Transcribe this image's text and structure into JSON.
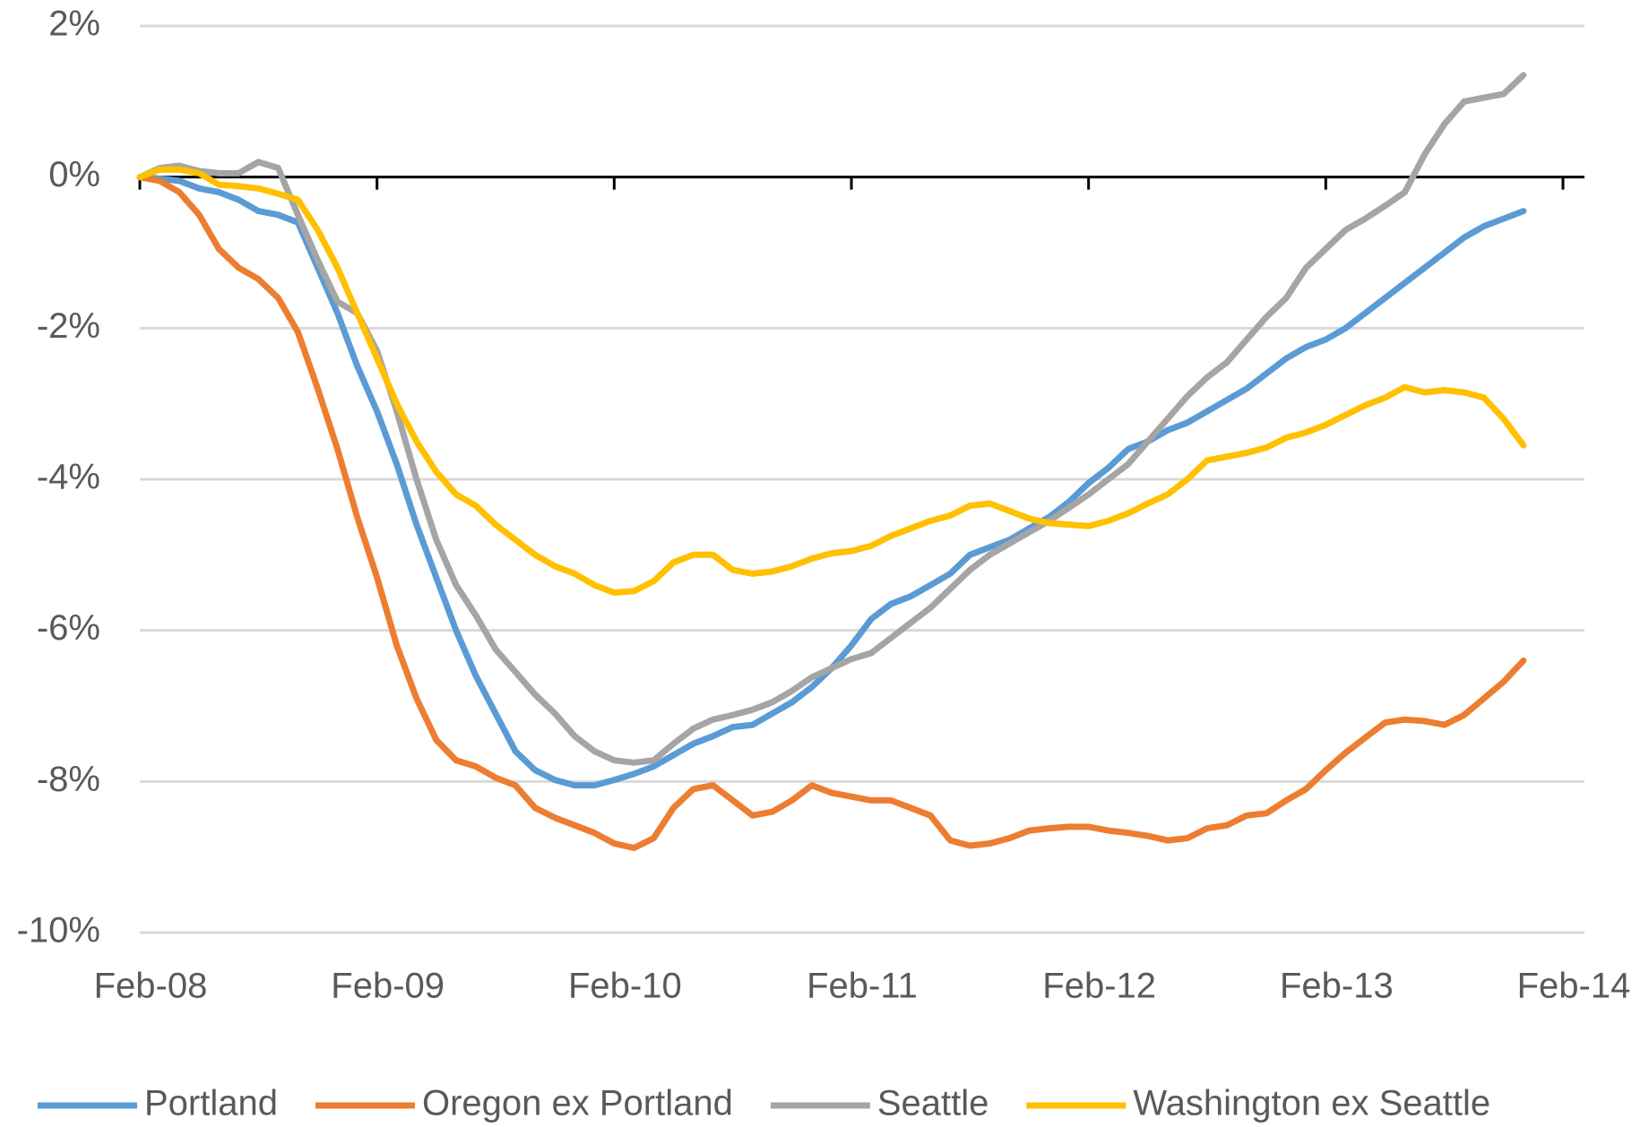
{
  "chart_data": {
    "type": "line",
    "categories": [
      "Feb-08",
      null,
      null,
      null,
      null,
      null,
      null,
      null,
      null,
      null,
      null,
      null,
      "Feb-09",
      null,
      null,
      null,
      null,
      null,
      null,
      null,
      null,
      null,
      null,
      null,
      "Feb-10",
      null,
      null,
      null,
      null,
      null,
      null,
      null,
      null,
      null,
      null,
      null,
      "Feb-11",
      null,
      null,
      null,
      null,
      null,
      null,
      null,
      null,
      null,
      null,
      null,
      "Feb-12",
      null,
      null,
      null,
      null,
      null,
      null,
      null,
      null,
      null,
      null,
      null,
      "Feb-13",
      null,
      null,
      null,
      null,
      null,
      null,
      null,
      null,
      null,
      null,
      null,
      "Feb-14"
    ],
    "series": [
      {
        "name": "Portland",
        "color": "#5b9bd5",
        "values": [
          0,
          -0.02,
          -0.05,
          -0.15,
          -0.2,
          -0.3,
          -0.45,
          -0.5,
          -0.6,
          -1.2,
          -1.8,
          -2.5,
          -3.1,
          -3.8,
          -4.6,
          -5.3,
          -6.0,
          -6.6,
          -7.1,
          -7.6,
          -7.85,
          -7.98,
          -8.05,
          -8.05,
          -7.98,
          -7.9,
          -7.8,
          -7.65,
          -7.5,
          -7.4,
          -7.28,
          -7.25,
          -7.1,
          -6.95,
          -6.75,
          -6.5,
          -6.2,
          -5.85,
          -5.65,
          -5.55,
          -5.4,
          -5.25,
          -5.0,
          -4.9,
          -4.8,
          -4.65,
          -4.5,
          -4.3,
          -4.05,
          -3.85,
          -3.6,
          -3.5,
          -3.35,
          -3.25,
          -3.1,
          -2.95,
          -2.8,
          -2.6,
          -2.4,
          -2.25,
          -2.15,
          -2.0,
          -1.8,
          -1.6,
          -1.4,
          -1.2,
          -1.0,
          -0.8,
          -0.65,
          -0.55,
          -0.45,
          null,
          null
        ]
      },
      {
        "name": "Oregon ex Portland",
        "color": "#ed7d31",
        "values": [
          0,
          -0.05,
          -0.2,
          -0.5,
          -0.95,
          -1.2,
          -1.35,
          -1.6,
          -2.05,
          -2.8,
          -3.6,
          -4.5,
          -5.3,
          -6.2,
          -6.9,
          -7.45,
          -7.72,
          -7.8,
          -7.95,
          -8.05,
          -8.35,
          -8.48,
          -8.58,
          -8.68,
          -8.82,
          -8.88,
          -8.75,
          -8.35,
          -8.1,
          -8.05,
          -8.25,
          -8.45,
          -8.4,
          -8.25,
          -8.05,
          -8.15,
          -8.2,
          -8.25,
          -8.25,
          -8.35,
          -8.45,
          -8.78,
          -8.85,
          -8.82,
          -8.75,
          -8.65,
          -8.62,
          -8.6,
          -8.6,
          -8.65,
          -8.68,
          -8.72,
          -8.78,
          -8.75,
          -8.62,
          -8.58,
          -8.45,
          -8.42,
          -8.25,
          -8.1,
          -7.85,
          -7.62,
          -7.42,
          -7.22,
          -7.18,
          -7.2,
          -7.25,
          -7.12,
          -6.9,
          -6.68,
          -6.4,
          null,
          null
        ]
      },
      {
        "name": "Seattle",
        "color": "#a5a5a5",
        "values": [
          0,
          0.12,
          0.15,
          0.08,
          0.05,
          0.05,
          0.2,
          0.12,
          -0.5,
          -1.1,
          -1.65,
          -1.8,
          -2.3,
          -3.1,
          -4.0,
          -4.8,
          -5.4,
          -5.8,
          -6.25,
          -6.55,
          -6.85,
          -7.1,
          -7.4,
          -7.6,
          -7.72,
          -7.75,
          -7.72,
          -7.5,
          -7.3,
          -7.18,
          -7.12,
          -7.05,
          -6.95,
          -6.8,
          -6.62,
          -6.5,
          -6.38,
          -6.3,
          -6.1,
          -5.9,
          -5.7,
          -5.45,
          -5.2,
          -5.0,
          -4.85,
          -4.7,
          -4.55,
          -4.38,
          -4.2,
          -4.0,
          -3.8,
          -3.5,
          -3.2,
          -2.9,
          -2.65,
          -2.45,
          -2.15,
          -1.85,
          -1.6,
          -1.2,
          -0.95,
          -0.7,
          -0.55,
          -0.38,
          -0.2,
          0.3,
          0.7,
          1.0,
          1.05,
          1.1,
          1.35,
          null,
          null
        ]
      },
      {
        "name": "Washington ex Seattle",
        "color": "#ffc000",
        "values": [
          0,
          0.1,
          0.1,
          0.05,
          -0.1,
          -0.12,
          -0.15,
          -0.22,
          -0.3,
          -0.7,
          -1.2,
          -1.8,
          -2.4,
          -3.0,
          -3.5,
          -3.9,
          -4.2,
          -4.35,
          -4.6,
          -4.8,
          -5.0,
          -5.15,
          -5.25,
          -5.4,
          -5.5,
          -5.48,
          -5.35,
          -5.1,
          -5.0,
          -5.0,
          -5.2,
          -5.25,
          -5.22,
          -5.15,
          -5.05,
          -4.98,
          -4.95,
          -4.88,
          -4.75,
          -4.65,
          -4.55,
          -4.48,
          -4.35,
          -4.32,
          -4.42,
          -4.52,
          -4.58,
          -4.6,
          -4.62,
          -4.55,
          -4.45,
          -4.32,
          -4.2,
          -4.0,
          -3.75,
          -3.7,
          -3.65,
          -3.58,
          -3.45,
          -3.38,
          -3.28,
          -3.15,
          -3.02,
          -2.92,
          -2.78,
          -2.85,
          -2.82,
          -2.85,
          -2.92,
          -3.2,
          -3.55,
          null,
          null
        ]
      }
    ],
    "ylim": [
      -10,
      2
    ],
    "yticks": [
      {
        "value": -10,
        "label": "-10%"
      },
      {
        "value": -8,
        "label": "-8%"
      },
      {
        "value": -6,
        "label": "-6%"
      },
      {
        "value": -4,
        "label": "-4%"
      },
      {
        "value": -2,
        "label": "-2%"
      },
      {
        "value": 0,
        "label": "0%"
      },
      {
        "value": 2,
        "label": "2%"
      }
    ],
    "grid": true,
    "legend": "bottom"
  }
}
